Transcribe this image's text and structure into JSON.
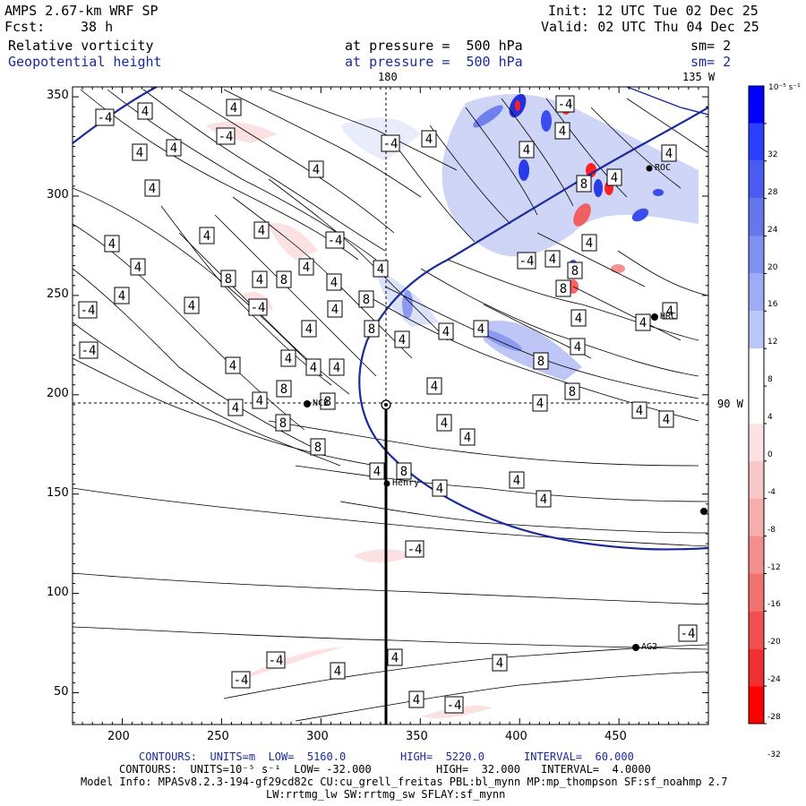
{
  "header": {
    "model": "AMPS 2.67-km WRF SP",
    "init": "Init: 12 UTC Tue 02 Dec 25",
    "fcst_label": "Fcst:",
    "fcst_value": "38 h",
    "valid": "Valid: 02 UTC Thu 04 Dec 25",
    "field1_name": "Relative vorticity",
    "field1_level": "at pressure =  500 hPa",
    "field1_sm": "sm= 2",
    "field2_name": "Geopotential height",
    "field2_level": "at pressure =  500 hPa",
    "field2_sm": "sm= 2"
  },
  "map": {
    "lon_top_180": "180",
    "lon_top_135": "135 W",
    "lon_right_90": "90 W",
    "x_ticks": [
      "200",
      "250",
      "300",
      "350",
      "400",
      "450"
    ],
    "y_ticks": [
      "350",
      "300",
      "250",
      "200",
      "150",
      "100",
      "50"
    ],
    "stations": [
      {
        "name": "NCB"
      },
      {
        "name": "Henry"
      },
      {
        "name": "ROC"
      },
      {
        "name": "HRC"
      },
      {
        "name": "AG2"
      }
    ],
    "contour_labels": [
      "-4",
      "4",
      "8"
    ]
  },
  "colorbar": {
    "unit": "10⁻⁵ s⁻¹",
    "labels": [
      "32",
      "28",
      "24",
      "20",
      "16",
      "12",
      "8",
      "4",
      "0",
      "-4",
      "-8",
      "-12",
      "-16",
      "-20",
      "-24",
      "-28",
      "-32"
    ],
    "colors": [
      "#0000ff",
      "#2b3fff",
      "#4a5bf2",
      "#6676ef",
      "#8191f2",
      "#9eacf5",
      "#bcc6f8",
      "#ffffff",
      "#ffffff",
      "#fbe3e3",
      "#f8c8c8",
      "#f6adad",
      "#f48f8f",
      "#f27272",
      "#f05050",
      "#f03030",
      "#ff0000"
    ]
  },
  "footer": {
    "line1_a": "CONTOURS:  UNITS=m  LOW=  5160.0",
    "line1_b": "HIGH=  5220.0",
    "line1_c": "INTERVAL=  60.000",
    "line2_a": "CONTOURS:  UNITS=10⁻⁵ s⁻¹  LOW= -32.000",
    "line2_b": "HIGH=  32.000",
    "line2_c": "INTERVAL=  4.0000",
    "line3": "Model Info: MPASv8.2.3-194-gf29cd82c CU:cu_grell_freitas PBL:bl_mynn MP:mp_thompson SF:sf_noahmp 2.7",
    "line4": "LW:rrtmg_lw SW:rrtmg_sw SFLAY:sf_mynn"
  }
}
